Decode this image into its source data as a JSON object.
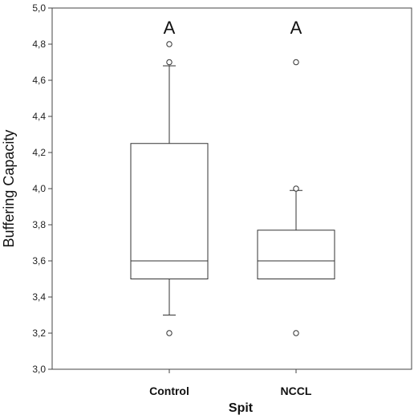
{
  "chart_data": {
    "type": "box",
    "xlabel": "Spit",
    "ylabel": "Buffering Capacity",
    "ylim": [
      3.0,
      5.0
    ],
    "yticks": [
      "3,0",
      "3,2",
      "3,4",
      "3,6",
      "3,8",
      "4,0",
      "4,2",
      "4,4",
      "4,6",
      "4,8",
      "5,0"
    ],
    "categories": [
      "Control",
      "NCCL"
    ],
    "boxes": [
      {
        "category": "Control",
        "whisker_low": 3.3,
        "q1": 3.5,
        "median": 3.6,
        "q3": 4.25,
        "whisker_high": 4.68,
        "outliers": [
          3.2,
          4.7,
          4.8
        ],
        "annotation": "A"
      },
      {
        "category": "NCCL",
        "whisker_low": 3.5,
        "q1": 3.5,
        "median": 3.6,
        "q3": 3.77,
        "whisker_high": 3.99,
        "outliers": [
          3.2,
          4.0,
          4.7
        ],
        "annotation": "A"
      }
    ],
    "grid": false,
    "legend": "none"
  }
}
